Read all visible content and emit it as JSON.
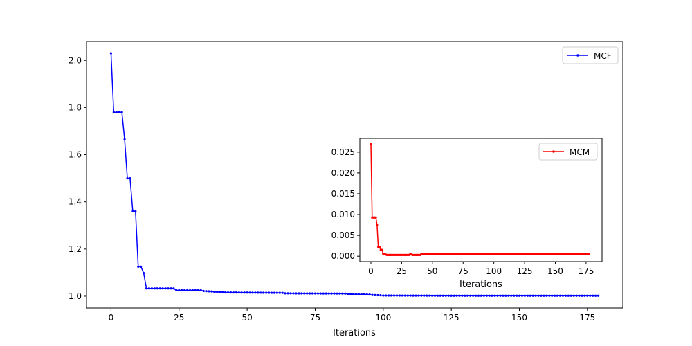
{
  "chart_data": [
    {
      "type": "line",
      "xlabel": "Iterations",
      "xlim": [
        -9,
        188
      ],
      "ylim": [
        0.95,
        2.08
      ],
      "x_ticks": [
        0,
        25,
        50,
        75,
        100,
        125,
        150,
        175
      ],
      "y_ticks": [
        1.0,
        1.2,
        1.4,
        1.6,
        1.8,
        2.0
      ],
      "y_tick_decimals": 1,
      "legend_position": "upper-right",
      "series": [
        {
          "name": "MCF",
          "color": "#0000ff",
          "points": [
            [
              0,
              2.03
            ],
            [
              1,
              1.78
            ],
            [
              2,
              1.78
            ],
            [
              3,
              1.78
            ],
            [
              4,
              1.78
            ],
            [
              5,
              1.665
            ],
            [
              6,
              1.5
            ],
            [
              7,
              1.5
            ],
            [
              8,
              1.36
            ],
            [
              9,
              1.36
            ],
            [
              10,
              1.125
            ],
            [
              11,
              1.125
            ],
            [
              12,
              1.098
            ],
            [
              13,
              1.033
            ],
            [
              22,
              1.033
            ],
            [
              23,
              1.033
            ],
            [
              24,
              1.025
            ],
            [
              33,
              1.025
            ],
            [
              34,
              1.022
            ],
            [
              37,
              1.02
            ],
            [
              38,
              1.018
            ],
            [
              41,
              1.018
            ],
            [
              42,
              1.016
            ],
            [
              63,
              1.014
            ],
            [
              64,
              1.012
            ],
            [
              86,
              1.011
            ],
            [
              87,
              1.009
            ],
            [
              95,
              1.007
            ],
            [
              96,
              1.005
            ],
            [
              99,
              1.004
            ],
            [
              100,
              1.003
            ],
            [
              125,
              1.002
            ],
            [
              179,
              1.002
            ]
          ]
        }
      ]
    },
    {
      "type": "line",
      "xlabel": "Iterations",
      "xlim": [
        -9,
        188
      ],
      "ylim": [
        -0.0013,
        0.0283
      ],
      "x_ticks": [
        0,
        25,
        50,
        75,
        100,
        125,
        150,
        175
      ],
      "y_ticks": [
        0.0,
        0.005,
        0.01,
        0.015,
        0.02,
        0.025
      ],
      "y_tick_decimals": 3,
      "legend_position": "upper-right",
      "series": [
        {
          "name": "MCM",
          "color": "#ff0000",
          "points": [
            [
              0,
              0.027
            ],
            [
              1,
              0.0093
            ],
            [
              2,
              0.0093
            ],
            [
              3,
              0.0093
            ],
            [
              4,
              0.0093
            ],
            [
              5,
              0.0075
            ],
            [
              6,
              0.0022
            ],
            [
              7,
              0.0022
            ],
            [
              8,
              0.0015
            ],
            [
              9,
              0.0015
            ],
            [
              10,
              0.0006
            ],
            [
              11,
              0.0006
            ],
            [
              12,
              0.0004
            ],
            [
              13,
              0.0003
            ],
            [
              31,
              0.0003
            ],
            [
              32,
              0.0005
            ],
            [
              33,
              0.0004
            ],
            [
              34,
              0.0003
            ],
            [
              40,
              0.0003
            ],
            [
              41,
              0.0005
            ],
            [
              177,
              0.0005
            ]
          ]
        }
      ]
    }
  ]
}
